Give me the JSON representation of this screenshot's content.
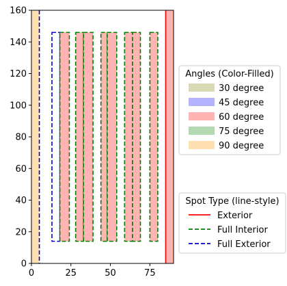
{
  "chart_data": {
    "type": "area",
    "xlim": [
      0,
      90
    ],
    "ylim": [
      0,
      160
    ],
    "xticks": [
      0,
      25,
      50,
      75
    ],
    "yticks": [
      0,
      20,
      40,
      60,
      80,
      100,
      120,
      140,
      160
    ],
    "grid": false,
    "angle_colors": {
      "30 degree": "#d9d9b3",
      "45 degree": "#b3b3ff",
      "60 degree": "#ffb3b3",
      "75 degree": "#b3d9b3",
      "90 degree": "#ffe0b3"
    },
    "spot_styles": {
      "Exterior": {
        "color": "#ff0000",
        "dash": "solid"
      },
      "Full Interior": {
        "color": "#008000",
        "dash": "dashed"
      },
      "Full Exterior": {
        "color": "#0000cc",
        "dash": "dashed"
      }
    },
    "regions": [
      {
        "x": [
          0,
          5
        ],
        "y": [
          0,
          160
        ],
        "angle": "90 degree",
        "spot": "Full Exterior",
        "edges": "right"
      },
      {
        "x": [
          85,
          90
        ],
        "y": [
          0,
          160
        ],
        "angle": "60 degree",
        "spot": "Exterior",
        "edges": "left"
      },
      {
        "x": [
          13,
          18
        ],
        "y": [
          14,
          146
        ],
        "angle": null,
        "spot": "Full Exterior",
        "edges": "all"
      },
      {
        "x": [
          18,
          24
        ],
        "y": [
          14,
          146
        ],
        "angle": "60 degree",
        "spot": "Full Interior",
        "edges": "all"
      },
      {
        "x": [
          28,
          33
        ],
        "y": [
          14,
          146
        ],
        "angle": "60 degree",
        "spot": "Full Interior",
        "edges": "all"
      },
      {
        "x": [
          33,
          39
        ],
        "y": [
          14,
          146
        ],
        "angle": "60 degree",
        "spot": "Full Interior",
        "edges": "all"
      },
      {
        "x": [
          44,
          48
        ],
        "y": [
          14,
          146
        ],
        "angle": "60 degree",
        "spot": "Full Interior",
        "edges": "all"
      },
      {
        "x": [
          48,
          54
        ],
        "y": [
          14,
          146
        ],
        "angle": "60 degree",
        "spot": "Full Interior",
        "edges": "all"
      },
      {
        "x": [
          59,
          64
        ],
        "y": [
          14,
          146
        ],
        "angle": "60 degree",
        "spot": "Full Interior",
        "edges": "all"
      },
      {
        "x": [
          64,
          69
        ],
        "y": [
          14,
          146
        ],
        "angle": "60 degree",
        "spot": "Full Interior",
        "edges": "all"
      },
      {
        "x": [
          75,
          80
        ],
        "y": [
          14,
          146
        ],
        "angle": "60 degree",
        "spot": "Full Interior",
        "edges": "all"
      }
    ],
    "legends": [
      {
        "title": "Angles (Color-Filled)",
        "placement": "center-right",
        "kind": "patch",
        "entries": [
          "30 degree",
          "45 degree",
          "60 degree",
          "75 degree",
          "90 degree"
        ]
      },
      {
        "title": "Spot Type (line-style)",
        "placement": "lower-right",
        "kind": "line",
        "entries": [
          "Exterior",
          "Full Interior",
          "Full Exterior"
        ]
      }
    ]
  }
}
